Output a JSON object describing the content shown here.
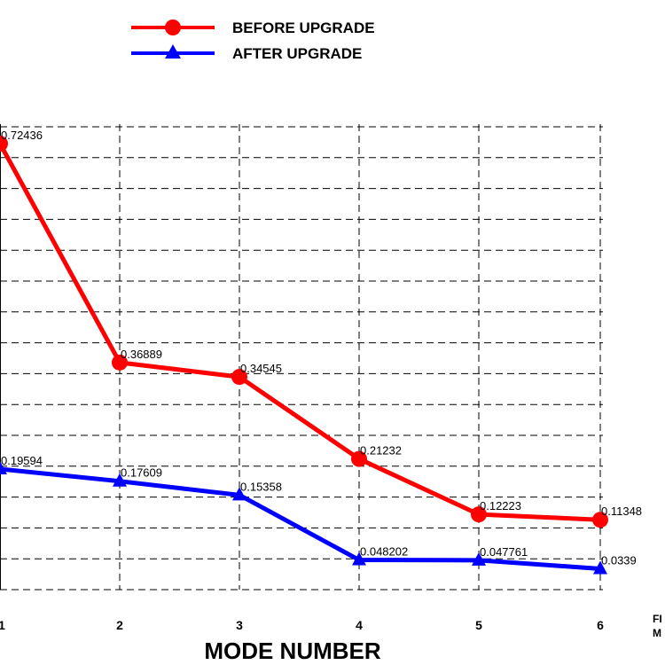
{
  "chart_data": {
    "type": "line",
    "x": [
      1,
      2,
      3,
      4,
      5,
      6
    ],
    "xlabel": "MODE NUMBER",
    "xticks": [
      "1",
      "2",
      "3",
      "4",
      "5",
      "6"
    ],
    "ylim": [
      0,
      0.72436
    ],
    "grid": true,
    "legend_position": "top-left",
    "series": [
      {
        "name": "BEFORE UPGRADE",
        "color": "#ff0000",
        "marker": "circle",
        "values": [
          0.72436,
          0.36889,
          0.34545,
          0.21232,
          0.12223,
          0.11348
        ],
        "labels": [
          "0.72436",
          "0.36889",
          "0.34545",
          "0.21232",
          "0.12223",
          "0.11348"
        ]
      },
      {
        "name": "AFTER UPGRADE",
        "color": "#0000ff",
        "marker": "triangle",
        "values": [
          0.19594,
          0.17609,
          0.15358,
          0.048202,
          0.047761,
          0.0339
        ],
        "labels": [
          "0.19594",
          "0.17609",
          "0.15358",
          "0.048202",
          "0.047761",
          "0.0339"
        ]
      }
    ],
    "edge_text": [
      "FI",
      "M"
    ]
  }
}
